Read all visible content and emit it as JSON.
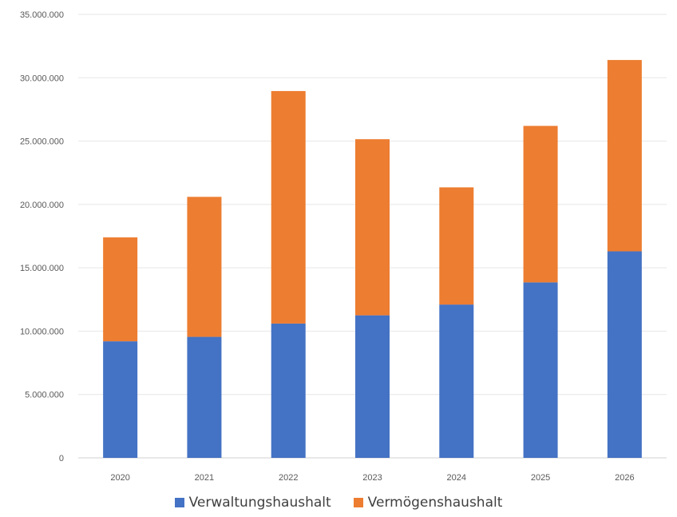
{
  "chart_data": {
    "type": "bar",
    "stacked": true,
    "categories": [
      "2020",
      "2021",
      "2022",
      "2023",
      "2024",
      "2025",
      "2026"
    ],
    "series": [
      {
        "name": "Verwaltungshaushalt",
        "color": "#4472C4",
        "values": [
          9200000,
          9550000,
          10600000,
          11250000,
          12100000,
          13850000,
          16300000
        ]
      },
      {
        "name": "Vermögenshaushalt",
        "color": "#ED7D31",
        "values": [
          8200000,
          11050000,
          18350000,
          13900000,
          9250000,
          12350000,
          15100000
        ]
      }
    ],
    "title": "",
    "xlabel": "",
    "ylabel": "",
    "ylim": [
      0,
      35000000
    ],
    "yticks": [
      0,
      5000000,
      10000000,
      15000000,
      20000000,
      25000000,
      30000000,
      35000000
    ],
    "ytick_labels": [
      "0",
      "5.000.000",
      "10.000.000",
      "15.000.000",
      "20.000.000",
      "25.000.000",
      "30.000.000",
      "35.000.000"
    ],
    "grid": true,
    "legend_position": "bottom"
  }
}
